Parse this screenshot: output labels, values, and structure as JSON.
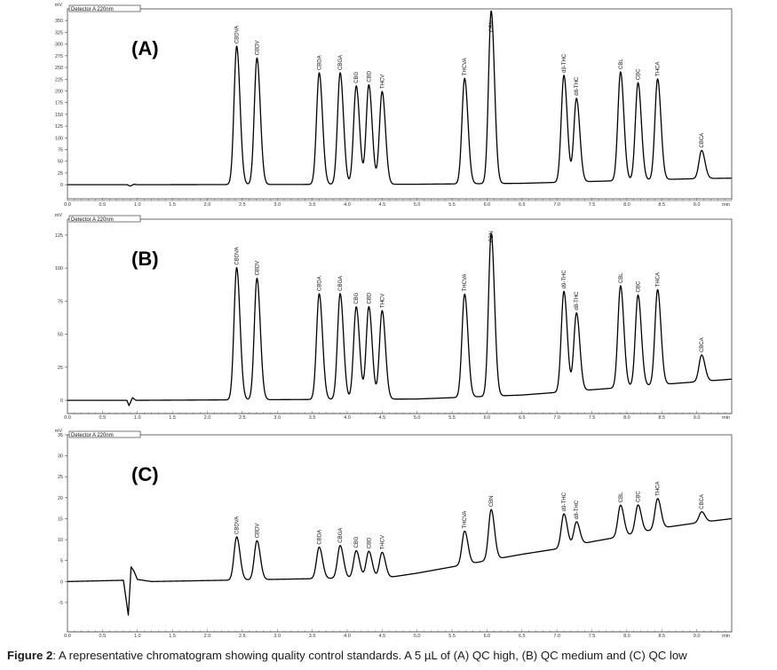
{
  "caption": {
    "prefix": "Figure 2",
    "text": ": A representative chromatogram showing quality control standards. A 5 µL of (A) QC high, (B) QC medium and (C) QC low"
  },
  "chart_data": [
    {
      "type": "line",
      "panel_label": "(A)",
      "detector_label": "Detector A 220nm",
      "ylabel": "mV",
      "xlabel": "min",
      "xlim": [
        0.0,
        9.5
      ],
      "ylim": [
        -30,
        375
      ],
      "xticks": [
        "0.0",
        "0.5",
        "1.0",
        "1.5",
        "2.0",
        "2.5",
        "3.0",
        "3.5",
        "4.0",
        "4.5",
        "5.0",
        "5.5",
        "6.0",
        "6.5",
        "7.0",
        "7.5",
        "8.0",
        "8.5",
        "9.0"
      ],
      "yticks": [
        "0",
        "25",
        "50",
        "75",
        "100",
        "125",
        "150",
        "175",
        "200",
        "225",
        "250",
        "275",
        "300",
        "325",
        "350"
      ],
      "baseline": [
        [
          0.0,
          0
        ],
        [
          0.85,
          0
        ],
        [
          0.9,
          -3
        ],
        [
          0.95,
          1
        ],
        [
          1.0,
          0
        ],
        [
          5.0,
          1
        ],
        [
          6.5,
          3
        ],
        [
          7.0,
          5
        ],
        [
          7.5,
          7
        ],
        [
          8.0,
          9
        ],
        [
          8.5,
          11
        ],
        [
          9.0,
          13
        ],
        [
          9.5,
          14
        ]
      ],
      "peaks": [
        {
          "name": "CBDVA",
          "rt": 2.42,
          "height": 295
        },
        {
          "name": "CBDV",
          "rt": 2.71,
          "height": 270
        },
        {
          "name": "CBDA",
          "rt": 3.6,
          "height": 238
        },
        {
          "name": "CBGA",
          "rt": 3.9,
          "height": 238
        },
        {
          "name": "CBG",
          "rt": 4.13,
          "height": 210
        },
        {
          "name": "CBD",
          "rt": 4.31,
          "height": 212
        },
        {
          "name": "THCV",
          "rt": 4.5,
          "height": 198
        },
        {
          "name": "THCVA",
          "rt": 5.68,
          "height": 225
        },
        {
          "name": "CBN",
          "rt": 6.06,
          "height": 368
        },
        {
          "name": "d9-THC",
          "rt": 7.1,
          "height": 228
        },
        {
          "name": "d8-THC",
          "rt": 7.28,
          "height": 178
        },
        {
          "name": "CBL",
          "rt": 7.91,
          "height": 232
        },
        {
          "name": "CBC",
          "rt": 8.16,
          "height": 208
        },
        {
          "name": "THCA",
          "rt": 8.44,
          "height": 215
        },
        {
          "name": "CBCA",
          "rt": 9.07,
          "height": 60
        }
      ]
    },
    {
      "type": "line",
      "panel_label": "(B)",
      "detector_label": "Detector A 220nm",
      "ylabel": "mV",
      "xlabel": "min",
      "xlim": [
        0.0,
        9.5
      ],
      "ylim": [
        -10,
        137
      ],
      "xticks": [
        "0.0",
        "0.5",
        "1.0",
        "1.5",
        "2.0",
        "2.5",
        "3.0",
        "3.5",
        "4.0",
        "4.5",
        "5.0",
        "5.5",
        "6.0",
        "6.5",
        "7.0",
        "7.5",
        "8.0",
        "8.5",
        "9.0"
      ],
      "yticks": [
        "0",
        "25",
        "50",
        "75",
        "100",
        "125"
      ],
      "baseline": [
        [
          0.0,
          0
        ],
        [
          0.85,
          0
        ],
        [
          0.88,
          -4
        ],
        [
          0.93,
          2
        ],
        [
          0.98,
          0
        ],
        [
          5.0,
          1
        ],
        [
          6.5,
          4
        ],
        [
          7.0,
          6
        ],
        [
          7.5,
          8
        ],
        [
          8.0,
          10
        ],
        [
          8.5,
          12
        ],
        [
          9.0,
          14
        ],
        [
          9.5,
          16
        ]
      ],
      "peaks": [
        {
          "name": "CBDVA",
          "rt": 2.42,
          "height": 100
        },
        {
          "name": "CBDV",
          "rt": 2.71,
          "height": 92
        },
        {
          "name": "CBDA",
          "rt": 3.6,
          "height": 80
        },
        {
          "name": "CBGA",
          "rt": 3.9,
          "height": 80
        },
        {
          "name": "CBG",
          "rt": 4.13,
          "height": 70
        },
        {
          "name": "CBD",
          "rt": 4.31,
          "height": 70
        },
        {
          "name": "THCV",
          "rt": 4.5,
          "height": 67
        },
        {
          "name": "THCVA",
          "rt": 5.68,
          "height": 78
        },
        {
          "name": "CBN",
          "rt": 6.06,
          "height": 123
        },
        {
          "name": "d9-THC",
          "rt": 7.1,
          "height": 76
        },
        {
          "name": "d8-THC",
          "rt": 7.28,
          "height": 59
        },
        {
          "name": "CBL",
          "rt": 7.91,
          "height": 77
        },
        {
          "name": "CBC",
          "rt": 8.16,
          "height": 69
        },
        {
          "name": "THCA",
          "rt": 8.44,
          "height": 72
        },
        {
          "name": "CBCA",
          "rt": 9.07,
          "height": 20
        }
      ]
    },
    {
      "type": "line",
      "panel_label": "(C)",
      "detector_label": "Detector A 220nm",
      "ylabel": "mV",
      "xlabel": "min",
      "xlim": [
        0.0,
        9.5
      ],
      "ylim": [
        -12,
        35
      ],
      "xticks": [
        "0.0",
        "0.5",
        "1.0",
        "1.5",
        "2.0",
        "2.5",
        "3.0",
        "3.5",
        "4.0",
        "4.5",
        "5.0",
        "5.5",
        "6.0",
        "6.5",
        "7.0",
        "7.5",
        "8.0",
        "8.5",
        "9.0"
      ],
      "yticks": [
        "-5",
        "0",
        "5",
        "10",
        "15",
        "20",
        "25",
        "30",
        "35"
      ],
      "baseline": [
        [
          0.0,
          0
        ],
        [
          0.8,
          0.3
        ],
        [
          0.87,
          -8
        ],
        [
          0.91,
          3.5
        ],
        [
          0.95,
          2.5
        ],
        [
          1.0,
          0.5
        ],
        [
          1.2,
          0
        ],
        [
          4.6,
          1
        ],
        [
          5.0,
          2
        ],
        [
          5.5,
          3.5
        ],
        [
          6.0,
          5
        ],
        [
          6.5,
          6.5
        ],
        [
          7.0,
          7.8
        ],
        [
          7.5,
          9.5
        ],
        [
          8.0,
          11
        ],
        [
          8.5,
          12.8
        ],
        [
          9.0,
          14
        ],
        [
          9.5,
          15
        ]
      ],
      "peaks": [
        {
          "name": "CBDVA",
          "rt": 2.42,
          "height": 10.3
        },
        {
          "name": "CBDV",
          "rt": 2.71,
          "height": 9.3
        },
        {
          "name": "CBDA",
          "rt": 3.6,
          "height": 7.5
        },
        {
          "name": "CBGA",
          "rt": 3.9,
          "height": 7.8
        },
        {
          "name": "CBG",
          "rt": 4.13,
          "height": 6.5
        },
        {
          "name": "CBD",
          "rt": 4.31,
          "height": 6.3
        },
        {
          "name": "THCV",
          "rt": 4.5,
          "height": 6.0
        },
        {
          "name": "THCVA",
          "rt": 5.68,
          "height": 8.0
        },
        {
          "name": "CBN",
          "rt": 6.06,
          "height": 12.0
        },
        {
          "name": "d9-THC",
          "rt": 7.1,
          "height": 8.0
        },
        {
          "name": "d8-THC",
          "rt": 7.28,
          "height": 5.5
        },
        {
          "name": "CBL",
          "rt": 7.91,
          "height": 7.5
        },
        {
          "name": "CBC",
          "rt": 8.16,
          "height": 6.7
        },
        {
          "name": "THCA",
          "rt": 8.44,
          "height": 7.2
        },
        {
          "name": "CBCA",
          "rt": 9.07,
          "height": 2.5
        }
      ]
    }
  ]
}
